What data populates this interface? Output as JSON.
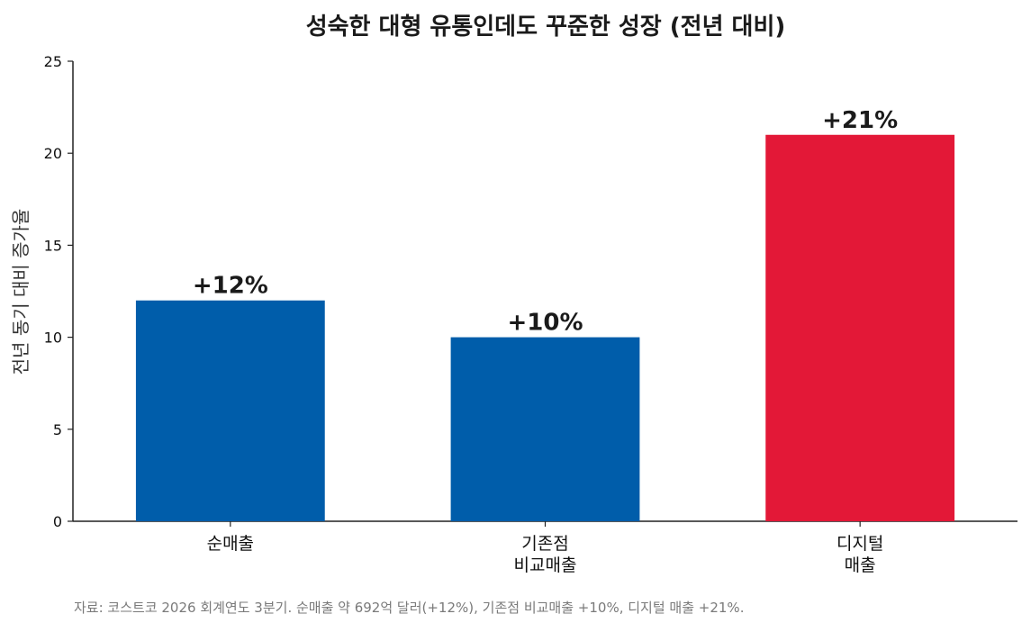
{
  "chart_data": {
    "type": "bar",
    "title": "성숙한 대형 유통인데도 꾸준한 성장 (전년 대비)",
    "ylabel": "전년 동기 대비 증가율",
    "xlabel": "",
    "ylim": [
      0,
      25
    ],
    "yticks": [
      0,
      5,
      10,
      15,
      20,
      25
    ],
    "grid": false,
    "categories": [
      [
        "순매출"
      ],
      [
        "기존점",
        "비교매출"
      ],
      [
        "디지털",
        "매출"
      ]
    ],
    "values": [
      12,
      10,
      21
    ],
    "data_labels": [
      "+12%",
      "+10%",
      "+21%"
    ],
    "colors": [
      "#005DAA",
      "#005DAA",
      "#E31837"
    ]
  },
  "source": "자료: 코스트코 2026 회계연도 3분기. 순매출 약 692억 달러(+12%), 기존점 비교매출 +10%, 디지털 매출 +21%."
}
